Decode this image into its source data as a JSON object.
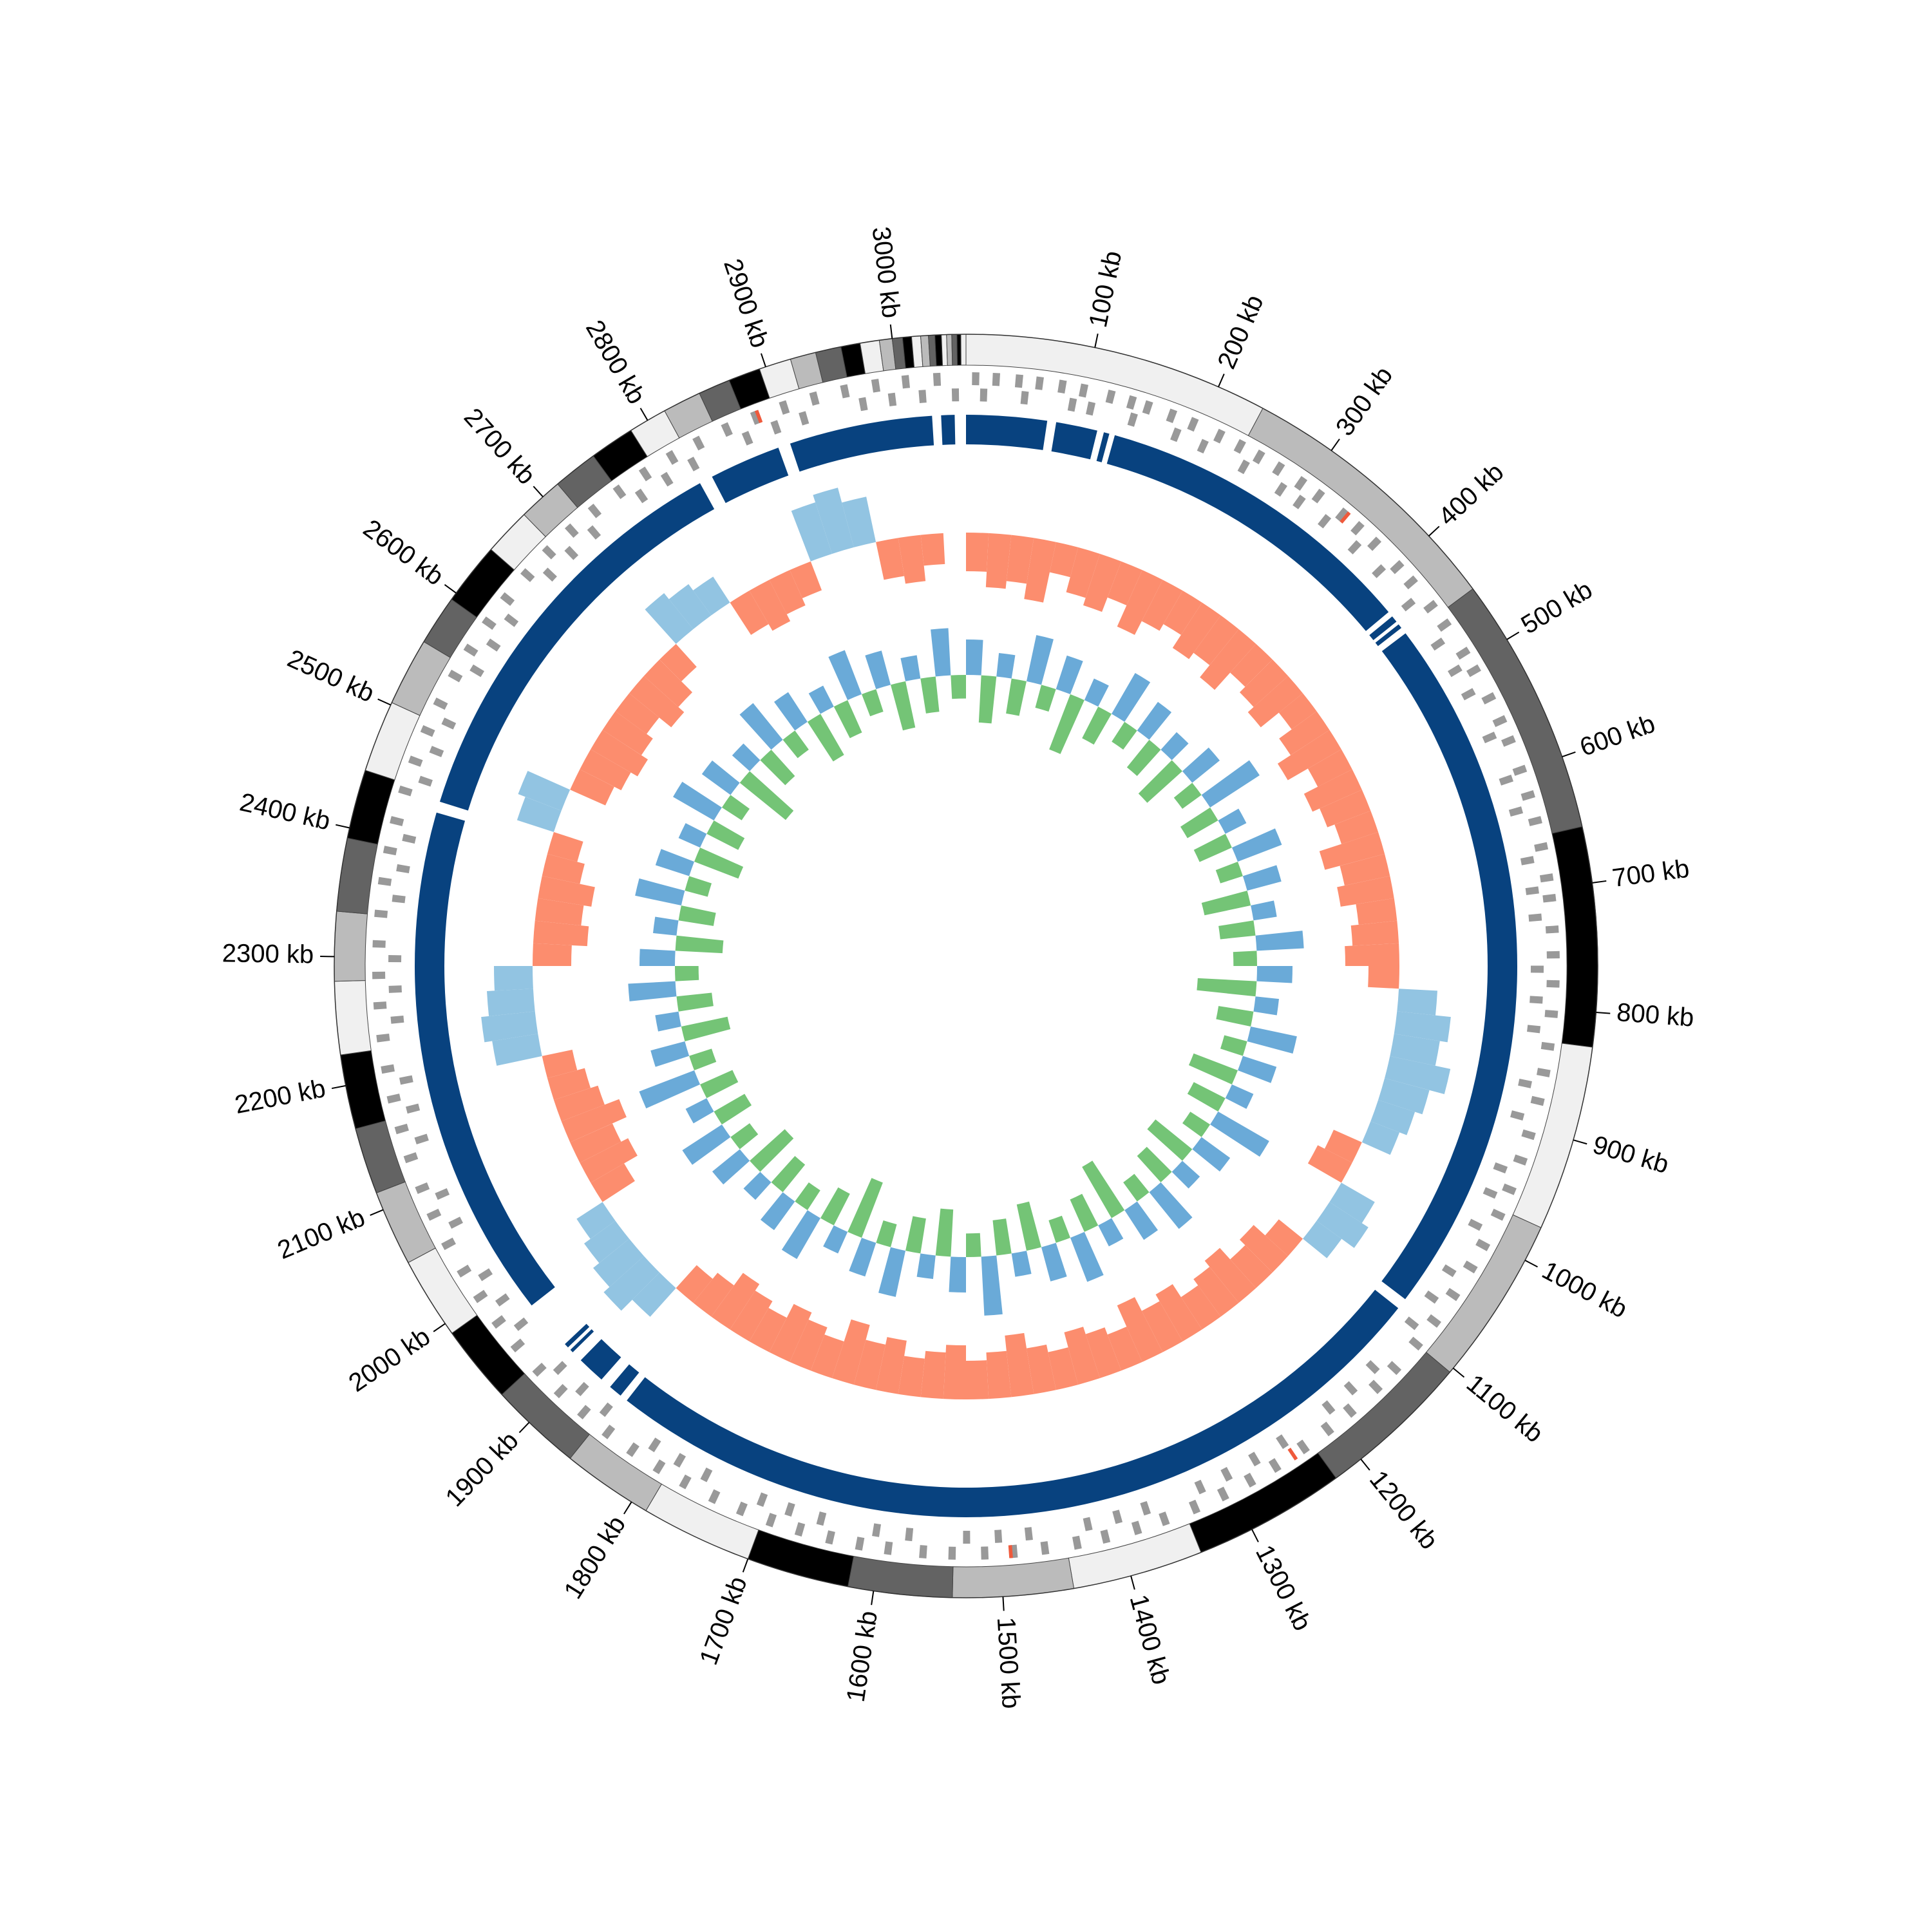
{
  "chart_data": {
    "type": "circos",
    "xlim": [
      0,
      3057
    ],
    "xticks": [
      {
        "value": 100,
        "label": "100 kb"
      },
      {
        "value": 200,
        "label": "200 kb"
      },
      {
        "value": 300,
        "label": "300 kb"
      },
      {
        "value": 400,
        "label": "400 kb"
      },
      {
        "value": 500,
        "label": "500 kb"
      },
      {
        "value": 600,
        "label": "600 kb"
      },
      {
        "value": 700,
        "label": "700 kb"
      },
      {
        "value": 800,
        "label": "800 kb"
      },
      {
        "value": 900,
        "label": "900 kb"
      },
      {
        "value": 1000,
        "label": "1000 kb"
      },
      {
        "value": 1100,
        "label": "1100 kb"
      },
      {
        "value": 1200,
        "label": "1200 kb"
      },
      {
        "value": 1300,
        "label": "1300 kb"
      },
      {
        "value": 1400,
        "label": "1400 kb"
      },
      {
        "value": 1500,
        "label": "1500 kb"
      },
      {
        "value": 1600,
        "label": "1600 kb"
      },
      {
        "value": 1700,
        "label": "1700 kb"
      },
      {
        "value": 1800,
        "label": "1800 kb"
      },
      {
        "value": 1900,
        "label": "1900 kb"
      },
      {
        "value": 2000,
        "label": "2000 kb"
      },
      {
        "value": 2100,
        "label": "2100 kb"
      },
      {
        "value": 2200,
        "label": "2200 kb"
      },
      {
        "value": 2300,
        "label": "2300 kb"
      },
      {
        "value": 2400,
        "label": "2400 kb"
      },
      {
        "value": 2500,
        "label": "2500 kb"
      },
      {
        "value": 2600,
        "label": "2600 kb"
      },
      {
        "value": 2700,
        "label": "2700 kb"
      },
      {
        "value": 2800,
        "label": "2800 kb"
      },
      {
        "value": 2900,
        "label": "2900 kb"
      },
      {
        "value": 3000,
        "label": "3000 kb"
      }
    ],
    "contig_bounds": [
      0,
      238,
      453,
      656,
      827,
      972,
      1104,
      1224,
      1343,
      1445,
      1539,
      1620,
      1700,
      1787,
      1858,
      1930,
      1991,
      2055,
      2114,
      2166,
      2224,
      2281,
      2335,
      2392,
      2446,
      2502,
      2555,
      2594,
      2643,
      2680,
      2715,
      2750,
      2785,
      2815,
      2845,
      2870,
      2895,
      2920,
      2940,
      2960,
      2975,
      2990,
      3000,
      3008,
      3015,
      3022,
      3028,
      3033,
      3038,
      3042,
      3046,
      3050,
      3053,
      3057
    ],
    "contig_colors": [
      "#f0f0f0",
      "#bbbbbb",
      "#636363",
      "#000000"
    ],
    "genes_forward": [
      5,
      22,
      41,
      58,
      77,
      95,
      118,
      136,
      150,
      171,
      190,
      214,
      233,
      251,
      270,
      292,
      310,
      335,
      352,
      371,
      398,
      415,
      441,
      460,
      488,
      505,
      531,
      552,
      570,
      596,
      618,
      640,
      662,
      688,
      705,
      731,
      752,
      776,
      801,
      828,
      850,
      874,
      903,
      925,
      951,
      974,
      1002,
      1023,
      1050,
      1077,
      1101,
      1128,
      1150,
      1179,
      1203,
      1228,
      1256,
      1280,
      1305,
      1331,
      1358,
      1382,
      1409,
      1433,
      1460,
      1486,
      1510,
      1537,
      1561,
      1590,
      1614,
      1639,
      1665,
      1690,
      1716,
      1741,
      1768,
      1793,
      1819,
      1844,
      1870,
      1896,
      1921,
      1948,
      1973,
      1999,
      2024,
      2050,
      2077,
      2101,
      2128,
      2153,
      2179,
      2204,
      2230,
      2257,
      2282,
      2308,
      2333,
      2360,
      2386,
      2411,
      2437,
      2463,
      2490,
      2515,
      2541,
      2566,
      2593,
      2618,
      2644,
      2670,
      2696,
      2721,
      2747,
      2773,
      2799,
      2824,
      2850,
      2876,
      2901,
      2927,
      2953,
      2979,
      3004,
      3030
    ],
    "genes_reverse": [
      12,
      47,
      88,
      104,
      141,
      180,
      205,
      244,
      281,
      300,
      327,
      361,
      390,
      428,
      470,
      497,
      520,
      561,
      600,
      628,
      671,
      697,
      720,
      764,
      790,
      815,
      862,
      890,
      937,
      960,
      990,
      1035,
      1062,
      1090,
      1140,
      1166,
      1191,
      1240,
      1268,
      1295,
      1320,
      1370,
      1395,
      1421,
      1472,
      1498,
      1525,
      1574,
      1602,
      1650,
      1678,
      1703,
      1755,
      1781,
      1806,
      1857,
      1884,
      1910,
      1960,
      1986,
      2012,
      2063,
      2090,
      2140,
      2167,
      2192,
      2244,
      2270,
      2296,
      2347,
      2373,
      2399,
      2450,
      2477,
      2503,
      2554,
      2580,
      2606,
      2657,
      2683,
      2709,
      2760,
      2786,
      2812,
      2863,
      2889,
      2914,
      2966,
      2991,
      3017,
      3045
    ],
    "rna_genes": [
      340,
      1240,
      1490,
      2880
    ],
    "gene_color": "#999999",
    "rna_color": "#ef5a3c",
    "hits": [
      [
        0,
        72
      ],
      [
        80,
        117
      ],
      [
        123,
        128
      ],
      [
        133,
        425
      ],
      [
        430,
        436
      ],
      [
        439,
        443
      ],
      [
        449,
        1080
      ],
      [
        1090,
        1851
      ],
      [
        1858,
        1870
      ],
      [
        1880,
        1905
      ],
      [
        1915,
        1918
      ],
      [
        1921,
        1925
      ],
      [
        1970,
        2430
      ],
      [
        2440,
        2812
      ],
      [
        2824,
        2888
      ],
      [
        2899,
        3027
      ],
      [
        3035,
        3047
      ]
    ],
    "hit_color": "#08427f",
    "gc_skew": {
      "ylim": [
        -0.1,
        0.1
      ],
      "positive_color": "#92c4e2",
      "negative_color": "#fc8d6e",
      "values": [
        -0.05,
        -0.07,
        -0.06,
        -0.08,
        -0.04,
        -0.06,
        -0.07,
        -0.05,
        -0.08,
        -0.06,
        -0.05,
        -0.07,
        -0.06,
        -0.08,
        -0.05,
        -0.06,
        -0.07,
        -0.04,
        -0.06,
        -0.08,
        -0.05,
        -0.07,
        -0.06,
        -0.05,
        -0.08,
        -0.06,
        -0.07,
        -0.05,
        -0.06,
        -0.07,
        -0.04,
        0.05,
        0.07,
        0.06,
        0.08,
        0.06,
        0.05,
        0.04,
        -0.04,
        -0.05,
        0.05,
        0.06,
        0.04,
        -0.04,
        -0.06,
        -0.05,
        -0.07,
        -0.06,
        -0.05,
        -0.07,
        -0.06,
        -0.08,
        -0.05,
        -0.06,
        -0.07,
        -0.05,
        -0.06,
        -0.08,
        -0.06,
        -0.05,
        -0.07,
        -0.06,
        -0.05,
        -0.07,
        -0.06,
        -0.08,
        -0.05,
        -0.06,
        -0.07,
        -0.05,
        -0.06,
        -0.07,
        -0.05,
        -0.04,
        0.05,
        0.07,
        0.06,
        0.05,
        0.04,
        -0.05,
        -0.07,
        -0.06,
        -0.08,
        -0.06,
        -0.05,
        -0.04,
        0.06,
        0.07,
        0.06,
        0.05,
        -0.05,
        -0.07,
        -0.06,
        -0.07,
        -0.05,
        -0.04,
        0.05,
        0.06,
        -0.05,
        -0.06,
        -0.07,
        -0.06,
        -0.05,
        -0.07,
        -0.06,
        -0.04,
        0.06,
        0.05,
        0.04,
        -0.05,
        -0.06,
        -0.05,
        -0.04,
        0.07,
        0.08,
        0.06,
        -0.05,
        -0.06,
        -0.04,
        null
      ]
    },
    "gc_content": {
      "ylim": [
        -0.06,
        0.06
      ],
      "positive_color": "#6aaad8",
      "negative_color": "#74c476",
      "values": [
        0.03,
        -0.04,
        0.02,
        -0.03,
        0.04,
        -0.02,
        0.03,
        -0.05,
        0.02,
        -0.03,
        0.04,
        -0.02,
        0.03,
        -0.03,
        0.02,
        -0.04,
        0.03,
        -0.02,
        0.05,
        -0.03,
        0.02,
        -0.03,
        0.04,
        -0.02,
        0.03,
        -0.04,
        0.02,
        -0.03,
        0.04,
        -0.02,
        0.03,
        -0.05,
        0.02,
        -0.03,
        0.04,
        -0.02,
        0.03,
        -0.04,
        0.02,
        -0.03,
        0.05,
        -0.02,
        0.03,
        -0.04,
        0.02,
        -0.03,
        0.04,
        -0.02,
        0.03,
        -0.05,
        0.02,
        -0.03,
        0.04,
        -0.02,
        0.03,
        -0.04,
        0.02,
        -0.03,
        0.05,
        -0.02,
        0.03,
        -0.04,
        0.02,
        -0.03,
        0.04,
        -0.02,
        0.03,
        -0.05,
        0.02,
        -0.03,
        0.04,
        -0.02,
        0.03,
        -0.03,
        0.02,
        -0.04,
        0.03,
        -0.02,
        0.04,
        -0.03,
        0.02,
        -0.03,
        0.05,
        -0.02,
        0.03,
        -0.04,
        0.02,
        -0.03,
        0.04,
        -0.02,
        0.03,
        -0.04,
        0.02,
        -0.03,
        0.04,
        -0.02,
        0.03,
        -0.04,
        0.02,
        -0.03,
        0.04,
        -0.02,
        0.03,
        -0.05,
        0.02,
        -0.03,
        0.04,
        -0.02,
        0.03,
        -0.04,
        0.02,
        -0.03,
        0.04,
        -0.02,
        0.03,
        -0.04,
        0.02,
        -0.03,
        0.04,
        -0.02
      ]
    }
  }
}
